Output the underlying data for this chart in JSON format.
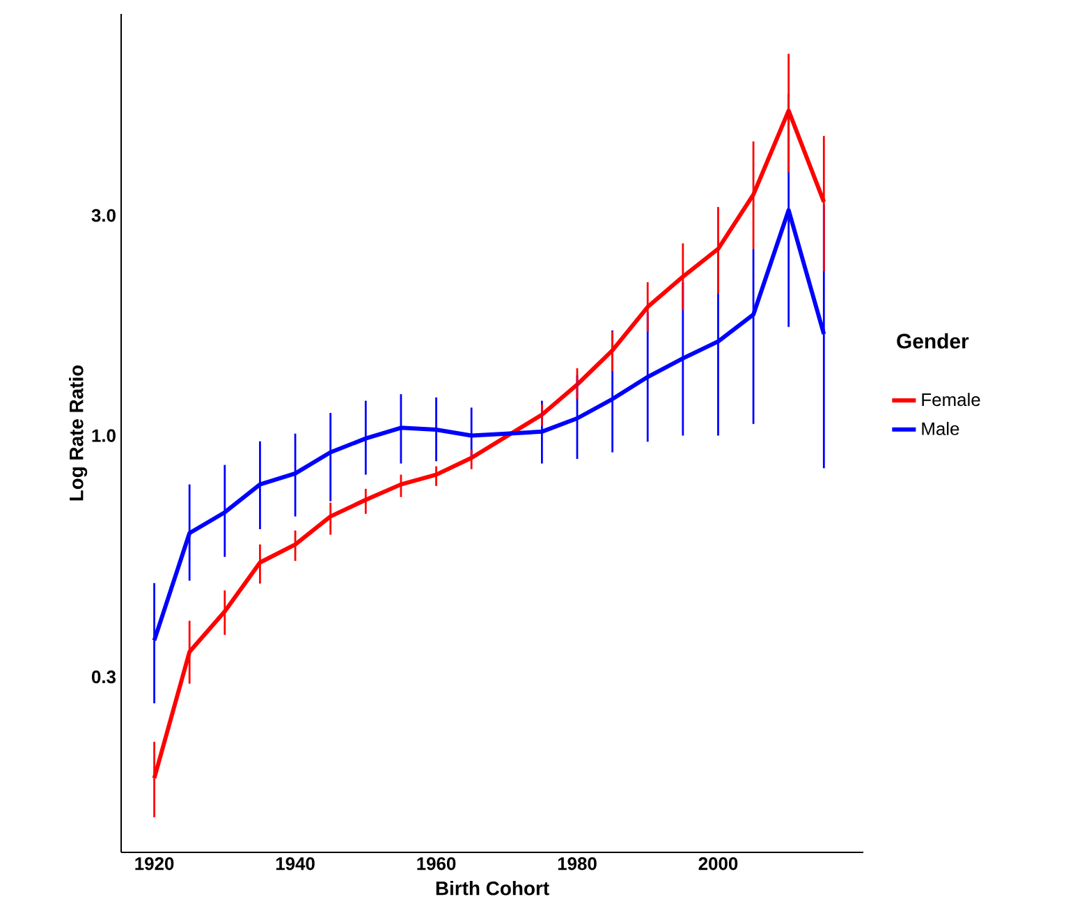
{
  "chart_data": {
    "type": "line",
    "xlabel": "Birth Cohort",
    "ylabel": "Log Rate Ratio",
    "legend_title": "Gender",
    "log": "y",
    "legend": "right",
    "xlim": [
      1915.3,
      2020.6
    ],
    "ylim": [
      0.125,
      8.2
    ],
    "xticks": [
      1920,
      1940,
      1960,
      1980,
      2000
    ],
    "yticks": [
      {
        "value": 0.3,
        "label": "0.3"
      },
      {
        "value": 1.0,
        "label": "1.0"
      },
      {
        "value": 3.0,
        "label": "3.0"
      }
    ],
    "series": [
      {
        "name": "Female",
        "color": "#ff0000",
        "x": [
          1920,
          1925,
          1930,
          1935,
          1940,
          1945,
          1950,
          1955,
          1960,
          1965,
          1975,
          1980,
          1985,
          1990,
          1995,
          2000,
          2005,
          2010,
          2015
        ],
        "values": [
          0.181,
          0.34,
          0.416,
          0.531,
          0.581,
          0.668,
          0.726,
          0.784,
          0.823,
          0.895,
          1.11,
          1.29,
          1.53,
          1.9,
          2.21,
          2.54,
          3.33,
          5.06,
          3.21
        ],
        "errors": [
          [
            0.149,
            0.217
          ],
          [
            0.29,
            0.397
          ],
          [
            0.37,
            0.462
          ],
          [
            0.478,
            0.581
          ],
          [
            0.535,
            0.623
          ],
          [
            0.61,
            0.716
          ],
          [
            0.677,
            0.767
          ],
          [
            0.736,
            0.823
          ],
          [
            0.778,
            0.858
          ],
          [
            0.846,
            0.932
          ],
          [
            1.05,
            1.17
          ],
          [
            1.2,
            1.4
          ],
          [
            1.38,
            1.68
          ],
          [
            1.68,
            2.15
          ],
          [
            1.87,
            2.61
          ],
          [
            2.03,
            3.13
          ],
          [
            2.54,
            4.34
          ],
          [
            3.72,
            6.72
          ],
          [
            2.27,
            4.46
          ]
        ]
      },
      {
        "name": "Male",
        "color": "#0000ff",
        "x": [
          1920,
          1925,
          1930,
          1935,
          1940,
          1945,
          1950,
          1955,
          1960,
          1965,
          1975,
          1980,
          1985,
          1990,
          1995,
          2000,
          2005,
          2010,
          2015
        ],
        "values": [
          0.36,
          0.615,
          0.682,
          0.784,
          0.828,
          0.92,
          0.986,
          1.04,
          1.03,
          1.0,
          1.02,
          1.09,
          1.2,
          1.34,
          1.47,
          1.6,
          1.83,
          3.08,
          1.66
        ],
        "errors": [
          [
            0.263,
            0.479
          ],
          [
            0.485,
            0.784
          ],
          [
            0.546,
            0.864
          ],
          [
            0.627,
            0.972
          ],
          [
            0.668,
            1.01
          ],
          [
            0.721,
            1.12
          ],
          [
            0.823,
            1.19
          ],
          [
            0.87,
            1.23
          ],
          [
            0.88,
            1.21
          ],
          [
            0.9,
            1.15
          ],
          [
            0.87,
            1.19
          ],
          [
            0.89,
            1.35
          ],
          [
            0.92,
            1.69
          ],
          [
            0.97,
            1.85
          ],
          [
            1.0,
            2.15
          ],
          [
            1.0,
            2.54
          ],
          [
            1.06,
            2.54
          ],
          [
            1.72,
            5.5
          ],
          [
            0.85,
            3.16
          ]
        ]
      }
    ]
  }
}
